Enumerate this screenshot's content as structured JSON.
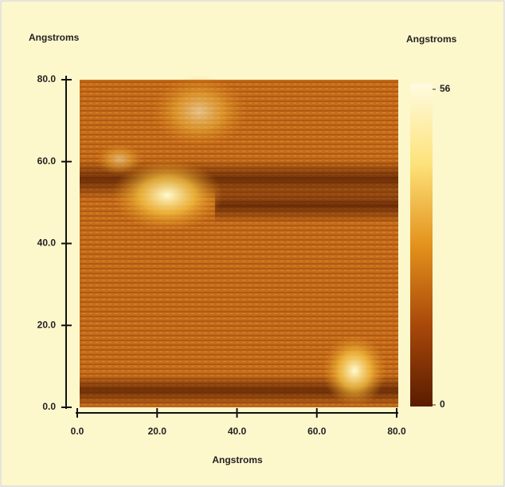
{
  "chart_data": {
    "type": "heatmap",
    "y_label": "Angstroms",
    "colorbar_label": "Angstroms",
    "x_label": "Angstroms",
    "xlim": [
      0,
      80
    ],
    "ylim": [
      0,
      80
    ],
    "xticks": [
      {
        "value": 0,
        "label": "0.0"
      },
      {
        "value": 20,
        "label": "20.0"
      },
      {
        "value": 40,
        "label": "40.0"
      },
      {
        "value": 60,
        "label": "60.0"
      },
      {
        "value": 80,
        "label": "80.0"
      }
    ],
    "yticks": [
      {
        "value": 0,
        "label": "0.0"
      },
      {
        "value": 20,
        "label": "20.0"
      },
      {
        "value": 40,
        "label": "40.0"
      },
      {
        "value": 60,
        "label": "60.0"
      },
      {
        "value": 80,
        "label": "80.0"
      }
    ],
    "colorbar": {
      "lim": [
        0,
        56
      ],
      "ticks": [
        0,
        56
      ],
      "colors": [
        "#5a1c00",
        "#a8480a",
        "#e3921c",
        "#fde27a",
        "#fffbe0"
      ]
    }
  }
}
